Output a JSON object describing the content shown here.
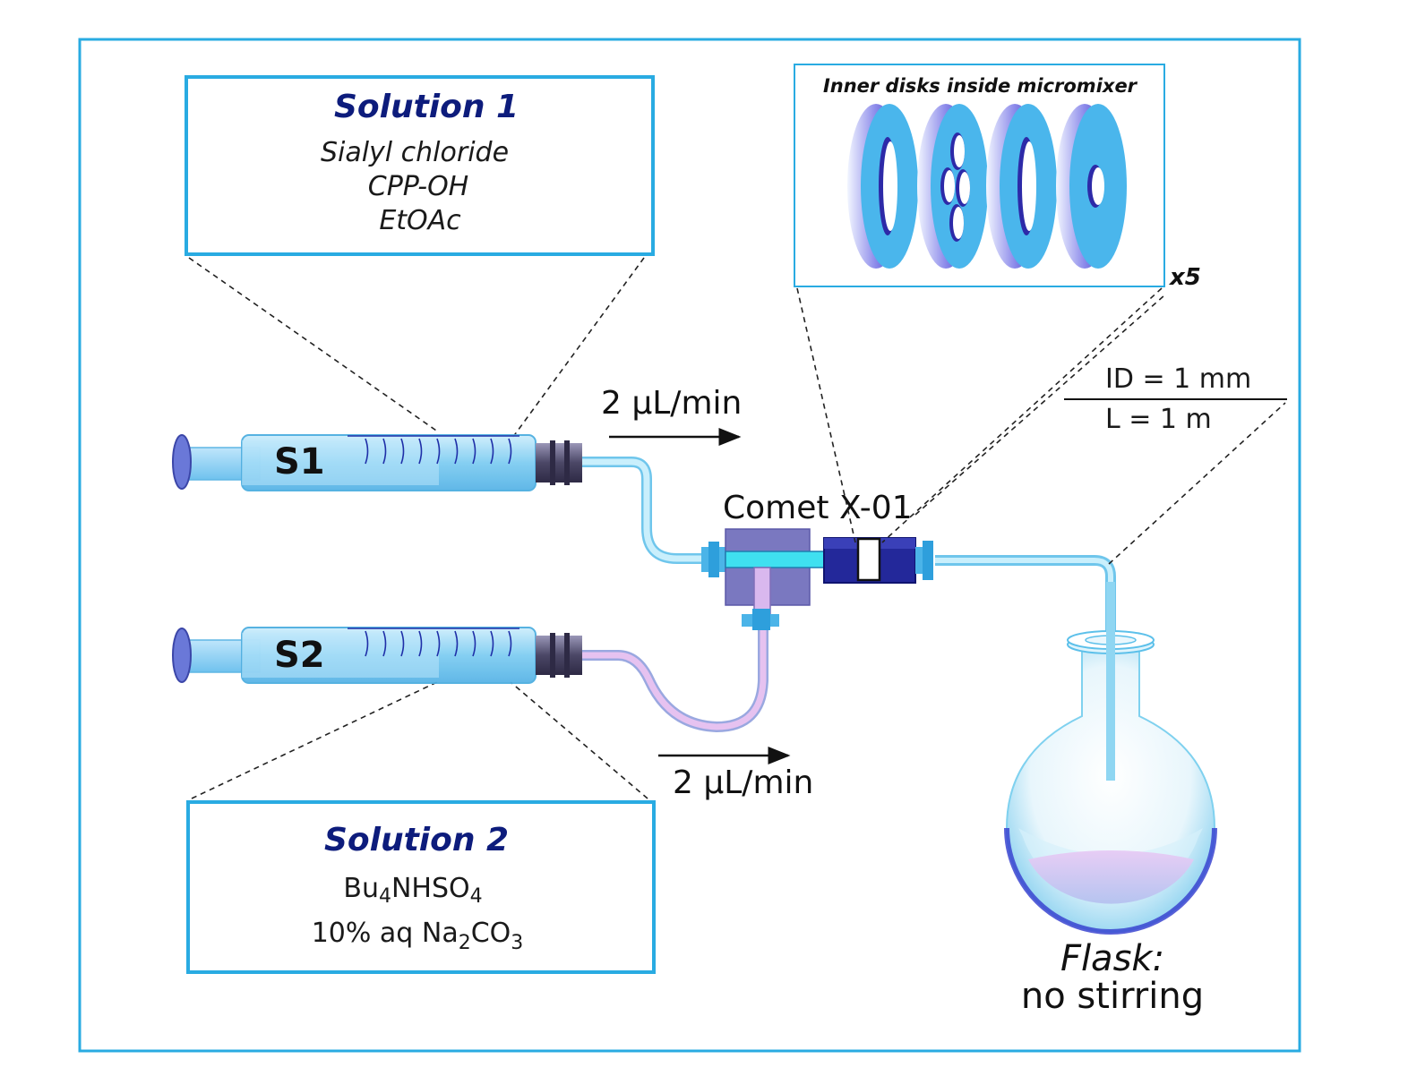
{
  "solution1": {
    "title": "Solution 1",
    "lines": [
      "Sialyl chloride",
      "CPP-OH",
      "EtOAc"
    ]
  },
  "solution2": {
    "title": "Solution 2",
    "line1": {
      "a": "Bu",
      "b": "4",
      "c": "NHSO",
      "d": "4"
    },
    "line2": {
      "a": "10% aq Na",
      "b": "2",
      "c": "CO",
      "d": "3"
    }
  },
  "syringes": {
    "s1": "S1",
    "s2": "S2"
  },
  "flow_rate_top": "2 μL/min",
  "flow_rate_bottom": "2 μL/min",
  "mixer_label": "Comet X-01",
  "inset": {
    "title": "Inner disks inside micromixer",
    "multiplier": "x5"
  },
  "tubing": {
    "id": "ID = 1 mm",
    "length": "L = 1 m"
  },
  "flask": {
    "label": "Flask:",
    "note": "no stirring"
  },
  "colors": {
    "frame": "#29abe2",
    "title_text": "#0d1c7c",
    "tube": "#a6dff5",
    "tube_pink": "#e3b6ec",
    "mixer_block": "#7a78c0",
    "mixer_body": "#23289a"
  }
}
